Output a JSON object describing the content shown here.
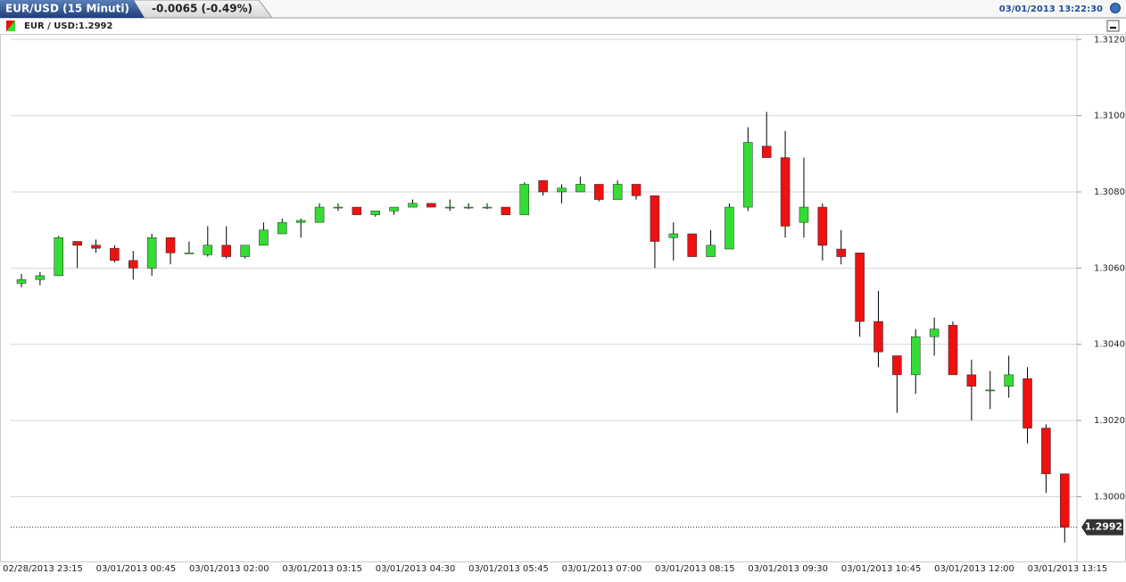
{
  "header": {
    "title": "EUR/USD (15 Minuti)",
    "change": "-0.0065 (-0.49%)",
    "timestamp": "03/01/2013 13:22:30"
  },
  "chart_data": {
    "type": "candlestick",
    "legend": "EUR / USD:1.2992",
    "open": [
      1.3056,
      1.3057,
      1.3058,
      1.3067,
      1.3066,
      1.30652,
      1.3062,
      1.306,
      1.3068,
      1.3064,
      1.30635,
      1.3066,
      1.3063,
      1.3066,
      1.3069,
      1.3072,
      1.3072,
      1.3076,
      1.3076,
      1.3074,
      1.3075,
      1.3076,
      1.3077,
      1.3076,
      1.3076,
      1.3076,
      1.3076,
      1.3074,
      1.3083,
      1.308,
      1.308,
      1.3082,
      1.3078,
      1.3082,
      1.3079,
      1.3068,
      1.3069,
      1.3063,
      1.3065,
      1.3076,
      1.3092,
      1.3089,
      1.3072,
      1.3076,
      1.3065,
      1.3064,
      1.3046,
      1.3037,
      1.3032,
      1.3042,
      1.3045,
      1.3032,
      1.3028,
      1.3029,
      1.3031,
      1.3018,
      1.3006
    ],
    "high": [
      1.30585,
      1.3059,
      1.30685,
      1.3067,
      1.30675,
      1.3066,
      1.30645,
      1.3069,
      1.3068,
      1.3067,
      1.3071,
      1.3071,
      1.3066,
      1.3072,
      1.3073,
      1.3073,
      1.3077,
      1.3077,
      1.3076,
      1.3075,
      1.3076,
      1.3078,
      1.3077,
      1.3078,
      1.3077,
      1.3077,
      1.3076,
      1.30825,
      1.3083,
      1.3082,
      1.3084,
      1.3082,
      1.3083,
      1.3082,
      1.3079,
      1.3072,
      1.3069,
      1.307,
      1.3077,
      1.3097,
      1.3101,
      1.3096,
      1.3089,
      1.3077,
      1.307,
      1.3064,
      1.3054,
      1.3037,
      1.3044,
      1.3047,
      1.3046,
      1.3036,
      1.3033,
      1.3037,
      1.3034,
      1.3019,
      1.3006
    ],
    "low": [
      1.3055,
      1.30555,
      1.3058,
      1.306,
      1.3064,
      1.30615,
      1.3057,
      1.3058,
      1.3061,
      1.3064,
      1.3063,
      1.30625,
      1.30625,
      1.3066,
      1.3069,
      1.3068,
      1.3072,
      1.3075,
      1.3074,
      1.30735,
      1.3074,
      1.3076,
      1.3076,
      1.3075,
      1.30755,
      1.30755,
      1.3074,
      1.3074,
      1.3079,
      1.3077,
      1.308,
      1.30775,
      1.3078,
      1.3078,
      1.306,
      1.3062,
      1.3063,
      1.3063,
      1.3065,
      1.3075,
      1.3089,
      1.3068,
      1.3068,
      1.3062,
      1.3061,
      1.3042,
      1.3034,
      1.3022,
      1.3027,
      1.3037,
      1.3032,
      1.302,
      1.3023,
      1.3026,
      1.3014,
      1.3001,
      1.2988
    ],
    "close": [
      1.3057,
      1.3058,
      1.3068,
      1.3066,
      1.30652,
      1.3062,
      1.306,
      1.3068,
      1.3064,
      1.3064,
      1.3066,
      1.3063,
      1.3066,
      1.307,
      1.3072,
      1.30725,
      1.3076,
      1.3076,
      1.3074,
      1.3075,
      1.3076,
      1.3077,
      1.3076,
      1.3076,
      1.3076,
      1.3076,
      1.3074,
      1.3082,
      1.308,
      1.3081,
      1.3082,
      1.3078,
      1.3082,
      1.3079,
      1.3067,
      1.3069,
      1.3063,
      1.3066,
      1.3076,
      1.3093,
      1.3089,
      1.3071,
      1.3076,
      1.3066,
      1.3063,
      1.3046,
      1.3038,
      1.3032,
      1.3042,
      1.3044,
      1.3032,
      1.3029,
      1.3028,
      1.3032,
      1.3018,
      1.3006,
      1.2992
    ],
    "up_color": "#33dd33",
    "down_color": "#ee1111",
    "ylim": [
      1.2983,
      1.3121
    ],
    "yticks": [
      {
        "value": 1.3,
        "label": "1.3000"
      },
      {
        "value": 1.302,
        "label": "1.3020"
      },
      {
        "value": 1.304,
        "label": "1.3040"
      },
      {
        "value": 1.306,
        "label": "1.3060"
      },
      {
        "value": 1.308,
        "label": "1.3080"
      },
      {
        "value": 1.31,
        "label": "1.3100"
      },
      {
        "value": 1.312,
        "label": "1.3120"
      }
    ],
    "grid": true,
    "xtick_labels": [
      "02/28/2013 23:15",
      "03/01/2013 00:45",
      "03/01/2013 02:00",
      "03/01/2013 03:15",
      "03/01/2013 04:30",
      "03/01/2013 05:45",
      "03/01/2013 07:00",
      "03/01/2013 08:15",
      "03/01/2013 09:30",
      "03/01/2013 10:45",
      "03/01/2013 12:00",
      "03/01/2013 13:15"
    ]
  }
}
